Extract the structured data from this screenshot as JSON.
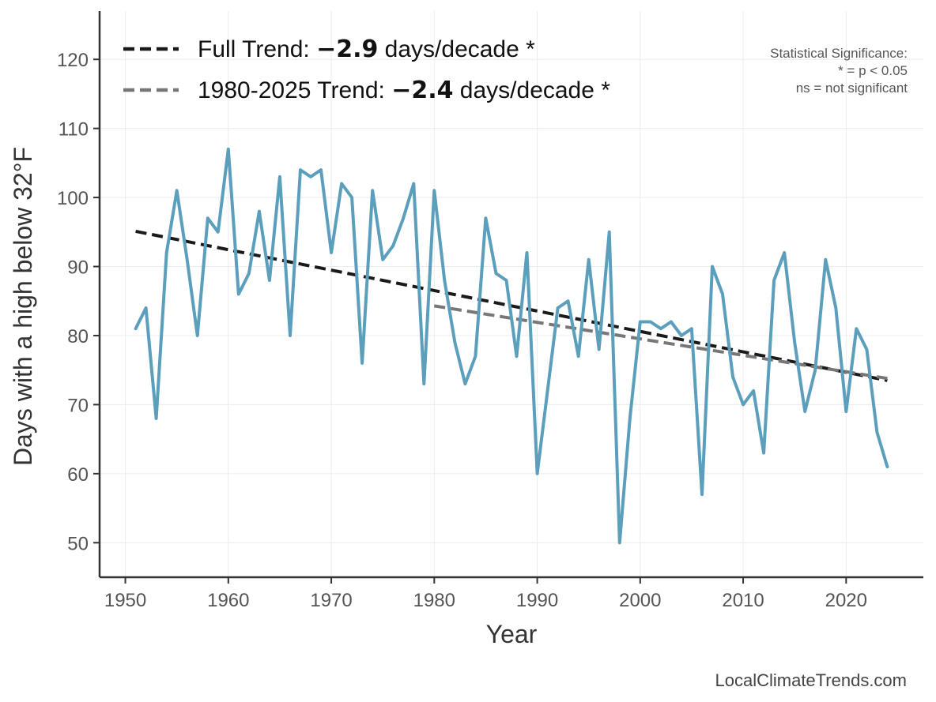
{
  "chart_data": {
    "type": "line",
    "xlabel": "Year",
    "ylabel": "Days with a high below 32°F",
    "xlim": [
      1947.5,
      2027.5
    ],
    "ylim": [
      45,
      127
    ],
    "x_ticks": [
      1950,
      1960,
      1970,
      1980,
      1990,
      2000,
      2010,
      2020
    ],
    "y_ticks": [
      50,
      60,
      70,
      80,
      90,
      100,
      110,
      120
    ],
    "grid": true,
    "legend_position": "top-left",
    "series": [
      {
        "color": "#5b9fbd",
        "x": [
          1951,
          1952,
          1953,
          1954,
          1955,
          1956,
          1957,
          1958,
          1959,
          1960,
          1961,
          1962,
          1963,
          1964,
          1965,
          1966,
          1967,
          1968,
          1969,
          1970,
          1971,
          1972,
          1973,
          1974,
          1975,
          1976,
          1977,
          1978,
          1979,
          1980,
          1981,
          1982,
          1983,
          1984,
          1985,
          1986,
          1987,
          1988,
          1989,
          1990,
          1991,
          1992,
          1993,
          1994,
          1995,
          1996,
          1997,
          1998,
          1999,
          2000,
          2001,
          2002,
          2003,
          2004,
          2005,
          2006,
          2007,
          2008,
          2009,
          2010,
          2011,
          2012,
          2013,
          2014,
          2015,
          2016,
          2017,
          2018,
          2019,
          2020,
          2021,
          2022,
          2023,
          2024
        ],
        "values": [
          81,
          84,
          68,
          92,
          101,
          91,
          80,
          97,
          95,
          107,
          86,
          89,
          98,
          88,
          103,
          80,
          104,
          103,
          104,
          92,
          102,
          100,
          76,
          101,
          91,
          93,
          97,
          102,
          73,
          101,
          88,
          79,
          73,
          77,
          97,
          89,
          88,
          77,
          92,
          60,
          72,
          84,
          85,
          77,
          91,
          78,
          95,
          50,
          68,
          82,
          82,
          81,
          82,
          80,
          81,
          57,
          90,
          86,
          74,
          70,
          72,
          63,
          88,
          92,
          79,
          69,
          75,
          91,
          84,
          69,
          81,
          78,
          66,
          61
        ]
      }
    ],
    "trends": [
      {
        "name_prefix": "Full Trend: ",
        "value": "−2.9",
        "name_suffix": " days/decade *",
        "color": "#1a1a1a",
        "x": [
          1951,
          2024
        ],
        "y": [
          95.1,
          73.5
        ]
      },
      {
        "name_prefix": "1980-2025 Trend: ",
        "value": "−2.4",
        "name_suffix": " days/decade *",
        "color": "#777777",
        "x": [
          1980,
          2024
        ],
        "y": [
          84.3,
          73.8
        ]
      }
    ],
    "significance_note": [
      "Statistical Significance:",
      "* = p < 0.05",
      "ns = not significant"
    ],
    "credit": "LocalClimateTrends.com"
  }
}
